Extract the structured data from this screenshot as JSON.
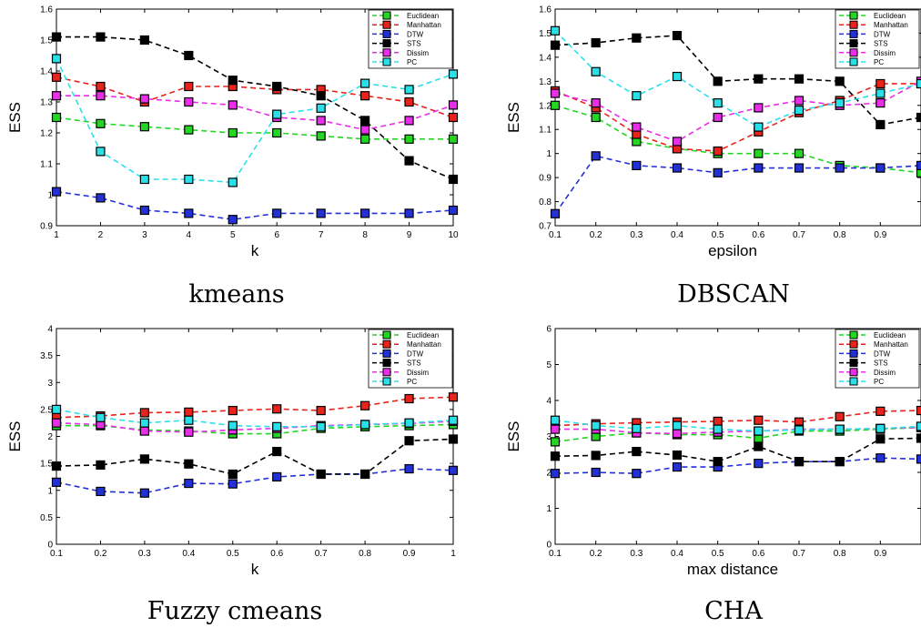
{
  "colors": {
    "Euclidean": "#22d622",
    "Manhattan": "#e8231c",
    "DTW": "#2230d6",
    "STS": "#000000",
    "Dissim": "#e82ee8",
    "PC": "#29e0e8"
  },
  "chart_data": [
    {
      "type": "line",
      "title": "kmeans",
      "xlabel": "k",
      "ylabel": "ESS",
      "xlim": [
        1,
        10
      ],
      "ylim": [
        0.9,
        1.6
      ],
      "xticks": [
        1,
        2,
        3,
        4,
        5,
        6,
        7,
        8,
        9,
        10
      ],
      "yticks": [
        0.9,
        1,
        1.1,
        1.2,
        1.3,
        1.4,
        1.5,
        1.6
      ],
      "xtick_labels": [
        "1",
        "2",
        "3",
        "4",
        "5",
        "6",
        "7",
        "8",
        "9",
        "10"
      ],
      "ytick_labels": [
        "0.9",
        "1",
        "1.1",
        "1.2",
        "1.3",
        "1.4",
        "1.5",
        "1.6"
      ],
      "legend": "top-right",
      "x": [
        1,
        2,
        3,
        4,
        5,
        6,
        7,
        8,
        9,
        10
      ],
      "series": [
        {
          "name": "Euclidean",
          "values": [
            1.25,
            1.23,
            1.22,
            1.21,
            1.2,
            1.2,
            1.19,
            1.18,
            1.18,
            1.18
          ]
        },
        {
          "name": "Manhattan",
          "values": [
            1.38,
            1.35,
            1.3,
            1.35,
            1.35,
            1.34,
            1.34,
            1.32,
            1.3,
            1.25
          ]
        },
        {
          "name": "DTW",
          "values": [
            1.01,
            0.99,
            0.95,
            0.94,
            0.92,
            0.94,
            0.94,
            0.94,
            0.94,
            0.95
          ]
        },
        {
          "name": "STS",
          "values": [
            1.51,
            1.51,
            1.5,
            1.45,
            1.37,
            1.35,
            1.32,
            1.24,
            1.11,
            1.05
          ]
        },
        {
          "name": "Dissim",
          "values": [
            1.32,
            1.32,
            1.31,
            1.3,
            1.29,
            1.25,
            1.24,
            1.21,
            1.24,
            1.29
          ]
        },
        {
          "name": "PC",
          "values": [
            1.44,
            1.14,
            1.05,
            1.05,
            1.04,
            1.26,
            1.28,
            1.36,
            1.34,
            1.39
          ]
        }
      ]
    },
    {
      "type": "line",
      "title": "DBSCAN",
      "xlabel": "epsilon",
      "ylabel": "ESS",
      "xlim": [
        0.1,
        1
      ],
      "ylim": [
        0.7,
        1.6
      ],
      "xticks": [
        0.1,
        0.2,
        0.3,
        0.4,
        0.5,
        0.6,
        0.7,
        0.8,
        0.9
      ],
      "yticks": [
        0.7,
        0.8,
        0.9,
        1,
        1.1,
        1.2,
        1.3,
        1.4,
        1.5,
        1.6
      ],
      "xtick_labels": [
        "0.1",
        "0.2",
        "0.3",
        "0.4",
        "0.5",
        "0.6",
        "0.7",
        "0.8",
        "0.9"
      ],
      "ytick_labels": [
        "0.7",
        "0.8",
        "0.9",
        "1",
        "1.1",
        "1.2",
        "1.3",
        "1.4",
        "1.5",
        "1.6"
      ],
      "legend": "top-right",
      "x": [
        0.1,
        0.2,
        0.3,
        0.4,
        0.5,
        0.6,
        0.7,
        0.8,
        0.9,
        1.0
      ],
      "series": [
        {
          "name": "Euclidean",
          "values": [
            1.2,
            1.15,
            1.05,
            1.02,
            1.0,
            1.0,
            1.0,
            0.95,
            0.94,
            0.92
          ]
        },
        {
          "name": "Manhattan",
          "values": [
            1.26,
            1.19,
            1.08,
            1.02,
            1.01,
            1.09,
            1.17,
            1.22,
            1.29,
            1.29
          ]
        },
        {
          "name": "DTW",
          "values": [
            0.75,
            0.99,
            0.95,
            0.94,
            0.92,
            0.94,
            0.94,
            0.94,
            0.94,
            0.95
          ]
        },
        {
          "name": "STS",
          "values": [
            1.45,
            1.46,
            1.48,
            1.49,
            1.3,
            1.31,
            1.31,
            1.3,
            1.12,
            1.15
          ]
        },
        {
          "name": "Dissim",
          "values": [
            1.25,
            1.21,
            1.11,
            1.05,
            1.15,
            1.19,
            1.22,
            1.2,
            1.21,
            1.3
          ]
        },
        {
          "name": "PC",
          "values": [
            1.51,
            1.34,
            1.24,
            1.32,
            1.21,
            1.11,
            1.18,
            1.21,
            1.25,
            1.29
          ]
        }
      ]
    },
    {
      "type": "line",
      "title": "Fuzzy cmeans",
      "xlabel": "k",
      "ylabel": "ESS",
      "xlim": [
        0.1,
        1
      ],
      "ylim": [
        0,
        4
      ],
      "xticks": [
        0.1,
        0.2,
        0.3,
        0.4,
        0.5,
        0.6,
        0.7,
        0.8,
        0.9,
        1
      ],
      "yticks": [
        0,
        0.5,
        1,
        1.5,
        2,
        2.5,
        3,
        3.5,
        4
      ],
      "xtick_labels": [
        "0.1",
        "0.2",
        "0.3",
        "0.4",
        "0.5",
        "0.6",
        "0.7",
        "0.8",
        "0.9",
        "1"
      ],
      "ytick_labels": [
        "0",
        "0.5",
        "1",
        "1.5",
        "2",
        "2.5",
        "3",
        "3.5",
        "4"
      ],
      "legend": "top-right",
      "x": [
        0.1,
        0.2,
        0.3,
        0.4,
        0.5,
        0.6,
        0.7,
        0.8,
        0.9,
        1.0
      ],
      "series": [
        {
          "name": "Euclidean",
          "values": [
            2.2,
            2.2,
            2.12,
            2.1,
            2.05,
            2.05,
            2.15,
            2.18,
            2.2,
            2.22
          ]
        },
        {
          "name": "Manhattan",
          "values": [
            2.35,
            2.38,
            2.44,
            2.45,
            2.48,
            2.51,
            2.48,
            2.57,
            2.7,
            2.73
          ]
        },
        {
          "name": "DTW",
          "values": [
            1.15,
            0.98,
            0.95,
            1.13,
            1.12,
            1.25,
            1.3,
            1.3,
            1.4,
            1.37
          ]
        },
        {
          "name": "STS",
          "values": [
            1.45,
            1.47,
            1.58,
            1.49,
            1.3,
            1.72,
            1.3,
            1.3,
            1.92,
            1.95
          ]
        },
        {
          "name": "Dissim",
          "values": [
            2.25,
            2.22,
            2.1,
            2.08,
            2.12,
            2.15,
            2.2,
            2.22,
            2.24,
            2.28
          ]
        },
        {
          "name": "PC",
          "values": [
            2.5,
            2.35,
            2.25,
            2.3,
            2.2,
            2.18,
            2.18,
            2.22,
            2.25,
            2.3
          ]
        }
      ]
    },
    {
      "type": "line",
      "title": "CHA",
      "xlabel": "max distance",
      "ylabel": "ESS",
      "xlim": [
        0.1,
        1
      ],
      "ylim": [
        0,
        6
      ],
      "xticks": [
        0.1,
        0.2,
        0.3,
        0.4,
        0.5,
        0.6,
        0.7,
        0.8,
        0.9
      ],
      "yticks": [
        0,
        1,
        2,
        3,
        4,
        5,
        6
      ],
      "xtick_labels": [
        "0.1",
        "0.2",
        "0.3",
        "0.4",
        "0.5",
        "0.6",
        "0.7",
        "0.8",
        "0.9"
      ],
      "ytick_labels": [
        "0",
        "1",
        "2",
        "3",
        "4",
        "5",
        "6"
      ],
      "legend": "top-right",
      "x": [
        0.1,
        0.2,
        0.3,
        0.4,
        0.5,
        0.6,
        0.7,
        0.8,
        0.9,
        1.0
      ],
      "series": [
        {
          "name": "Euclidean",
          "values": [
            2.85,
            3.0,
            3.1,
            3.05,
            3.05,
            2.95,
            3.15,
            3.15,
            3.2,
            3.25
          ]
        },
        {
          "name": "Manhattan",
          "values": [
            3.3,
            3.35,
            3.38,
            3.4,
            3.42,
            3.45,
            3.4,
            3.55,
            3.7,
            3.72
          ]
        },
        {
          "name": "DTW",
          "values": [
            1.97,
            2.0,
            1.97,
            2.15,
            2.15,
            2.25,
            2.3,
            2.3,
            2.4,
            2.37
          ]
        },
        {
          "name": "STS",
          "values": [
            2.45,
            2.47,
            2.58,
            2.48,
            2.3,
            2.72,
            2.3,
            2.3,
            2.93,
            2.95
          ]
        },
        {
          "name": "Dissim",
          "values": [
            3.2,
            3.2,
            3.1,
            3.08,
            3.12,
            3.15,
            3.2,
            3.2,
            3.22,
            3.25
          ]
        },
        {
          "name": "PC",
          "values": [
            3.45,
            3.3,
            3.22,
            3.3,
            3.2,
            3.15,
            3.18,
            3.2,
            3.22,
            3.28
          ]
        }
      ]
    }
  ]
}
